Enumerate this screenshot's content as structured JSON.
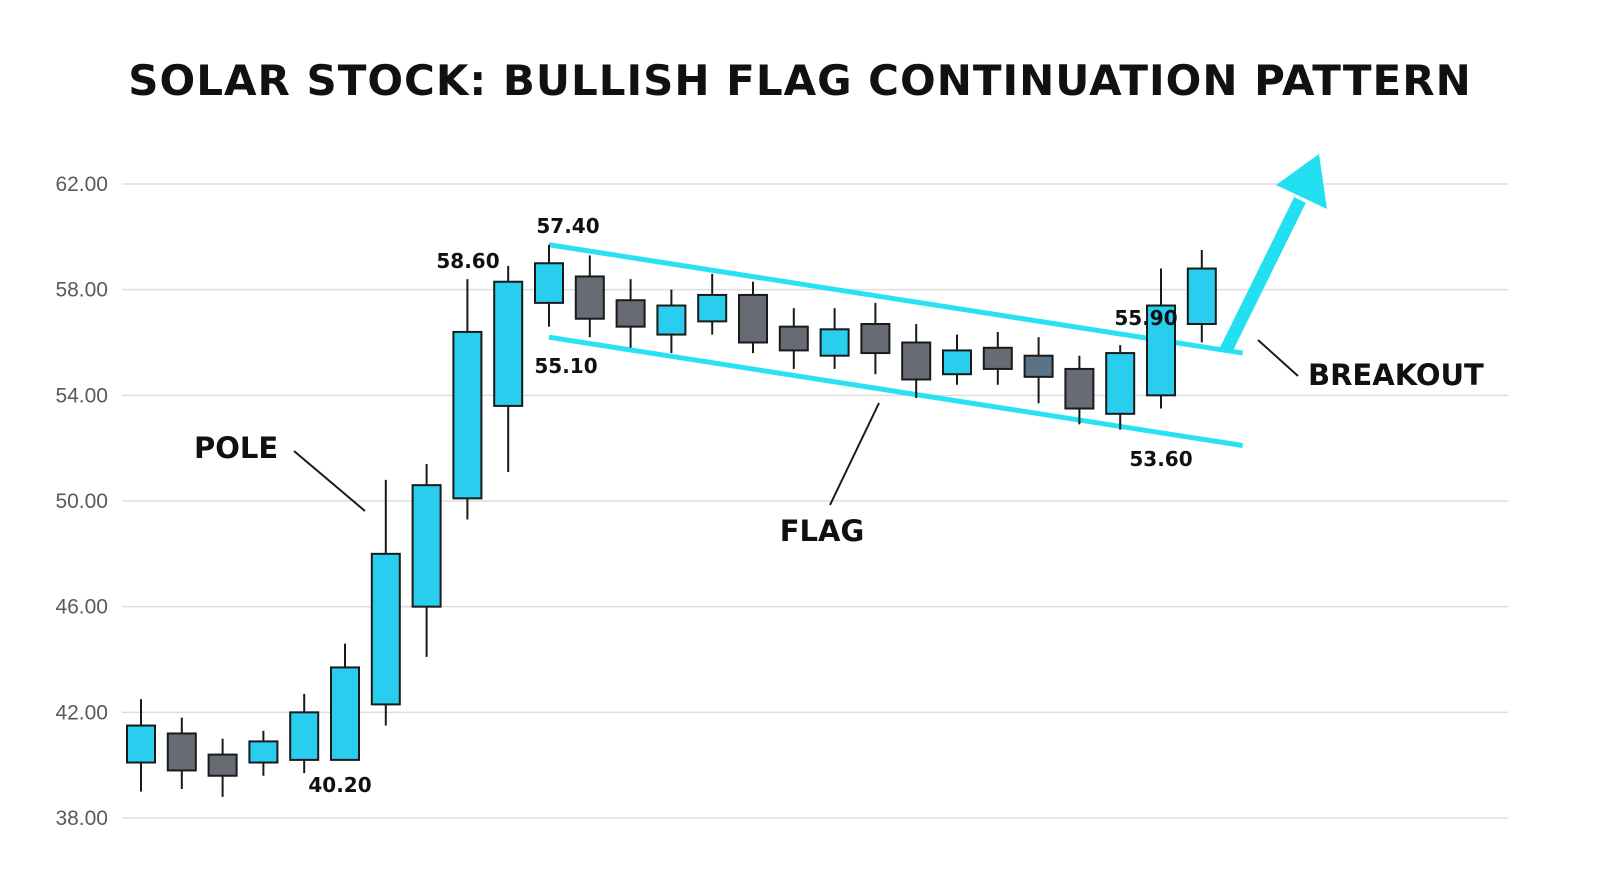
{
  "chart_data": {
    "type": "candlestick",
    "title": "SOLAR STOCK: BULLISH FLAG CONTINUATION PATTERN",
    "xlabel": "",
    "ylabel": "",
    "ylim": [
      38,
      62
    ],
    "y_ticks": [
      "62.00",
      "58.00",
      "54.00",
      "50.00",
      "46.00",
      "42.00",
      "38.00"
    ],
    "grid": true,
    "candles": [
      {
        "open": 40.1,
        "close": 41.5,
        "high": 42.5,
        "low": 39.0,
        "color": "up"
      },
      {
        "open": 41.2,
        "close": 39.8,
        "high": 41.8,
        "low": 39.1,
        "color": "down"
      },
      {
        "open": 40.4,
        "close": 39.6,
        "high": 41.0,
        "low": 38.8,
        "color": "down"
      },
      {
        "open": 40.1,
        "close": 40.9,
        "high": 41.3,
        "low": 39.6,
        "color": "up"
      },
      {
        "open": 40.2,
        "close": 42.0,
        "high": 42.7,
        "low": 39.7,
        "color": "up"
      },
      {
        "open": 40.2,
        "close": 43.7,
        "high": 44.6,
        "low": 40.2,
        "color": "up"
      },
      {
        "open": 42.3,
        "close": 48.0,
        "high": 50.8,
        "low": 41.5,
        "color": "up"
      },
      {
        "open": 46.0,
        "close": 50.6,
        "high": 51.4,
        "low": 44.1,
        "color": "up"
      },
      {
        "open": 50.1,
        "close": 56.4,
        "high": 58.4,
        "low": 49.3,
        "color": "up"
      },
      {
        "open": 53.6,
        "close": 58.3,
        "high": 58.9,
        "low": 51.1,
        "color": "up"
      },
      {
        "open": 57.5,
        "close": 59.0,
        "high": 59.7,
        "low": 56.6,
        "color": "up"
      },
      {
        "open": 58.5,
        "close": 56.9,
        "high": 59.3,
        "low": 56.2,
        "color": "down"
      },
      {
        "open": 57.6,
        "close": 56.6,
        "high": 58.4,
        "low": 55.8,
        "color": "down"
      },
      {
        "open": 56.3,
        "close": 57.4,
        "high": 58.0,
        "low": 55.6,
        "color": "up"
      },
      {
        "open": 56.8,
        "close": 57.8,
        "high": 58.6,
        "low": 56.3,
        "color": "up"
      },
      {
        "open": 57.8,
        "close": 56.0,
        "high": 58.3,
        "low": 55.6,
        "color": "down"
      },
      {
        "open": 56.6,
        "close": 55.7,
        "high": 57.3,
        "low": 55.0,
        "color": "down"
      },
      {
        "open": 55.5,
        "close": 56.5,
        "high": 57.3,
        "low": 55.0,
        "color": "up"
      },
      {
        "open": 56.7,
        "close": 55.6,
        "high": 57.5,
        "low": 54.8,
        "color": "down"
      },
      {
        "open": 56.0,
        "close": 54.6,
        "high": 56.7,
        "low": 53.9,
        "color": "down"
      },
      {
        "open": 54.8,
        "close": 55.7,
        "high": 56.3,
        "low": 54.4,
        "color": "up"
      },
      {
        "open": 55.8,
        "close": 55.0,
        "high": 56.4,
        "low": 54.4,
        "color": "down"
      },
      {
        "open": 55.5,
        "close": 54.7,
        "high": 56.2,
        "low": 53.7,
        "color": "slate"
      },
      {
        "open": 55.0,
        "close": 53.5,
        "high": 55.5,
        "low": 52.9,
        "color": "down"
      },
      {
        "open": 53.3,
        "close": 55.6,
        "high": 55.9,
        "low": 52.7,
        "color": "up"
      },
      {
        "open": 54.0,
        "close": 57.4,
        "high": 58.8,
        "low": 53.5,
        "color": "up"
      },
      {
        "open": 56.7,
        "close": 58.8,
        "high": 59.5,
        "low": 56.0,
        "color": "up"
      }
    ],
    "flag_upper_line": {
      "from": {
        "x": 10,
        "y": 59.7
      },
      "to": {
        "x": 27,
        "y": 55.6
      }
    },
    "flag_lower_line": {
      "from": {
        "x": 10,
        "y": 56.2
      },
      "to": {
        "x": 27,
        "y": 52.1
      }
    },
    "price_labels": [
      "57.40",
      "58.60",
      "55.10",
      "55.90",
      "53.60",
      "40.20"
    ],
    "annotations": [
      "POLE",
      "FLAG",
      "BREAKOUT"
    ],
    "colors": {
      "up": "#29cdee",
      "down": "#666b74",
      "slate": "#5b7384",
      "channel": "#28e2f2",
      "arrow": "#22e0f2",
      "grid": "#dddddd",
      "outline": "#1a1a1a"
    }
  }
}
